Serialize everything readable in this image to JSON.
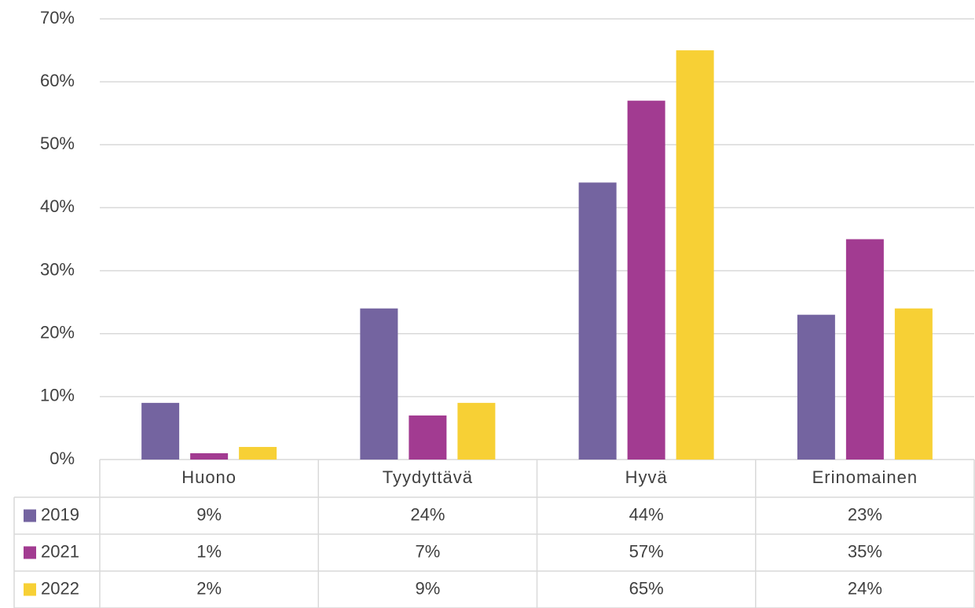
{
  "chart_data": {
    "type": "bar",
    "categories": [
      "Huono",
      "Tyydyttävä",
      "Hyvä",
      "Erinomainen"
    ],
    "series": [
      {
        "name": "2019",
        "color": "#7464a0",
        "values": [
          9,
          24,
          44,
          23
        ],
        "value_labels": [
          "9%",
          "24%",
          "44%",
          "23%"
        ]
      },
      {
        "name": "2021",
        "color": "#a23b91",
        "values": [
          1,
          7,
          57,
          35
        ],
        "value_labels": [
          "1%",
          "7%",
          "57%",
          "35%"
        ]
      },
      {
        "name": "2022",
        "color": "#f7d035",
        "values": [
          2,
          9,
          65,
          24
        ],
        "value_labels": [
          "2%",
          "9%",
          "65%",
          "24%"
        ]
      }
    ],
    "ylim": [
      0,
      70
    ],
    "yticks": [
      {
        "value": 0,
        "label": "0%"
      },
      {
        "value": 10,
        "label": "10%"
      },
      {
        "value": 20,
        "label": "20%"
      },
      {
        "value": 30,
        "label": "30%"
      },
      {
        "value": 40,
        "label": "40%"
      },
      {
        "value": 50,
        "label": "50%"
      },
      {
        "value": 60,
        "label": "60%"
      },
      {
        "value": 70,
        "label": "70%"
      }
    ],
    "grid": true
  }
}
